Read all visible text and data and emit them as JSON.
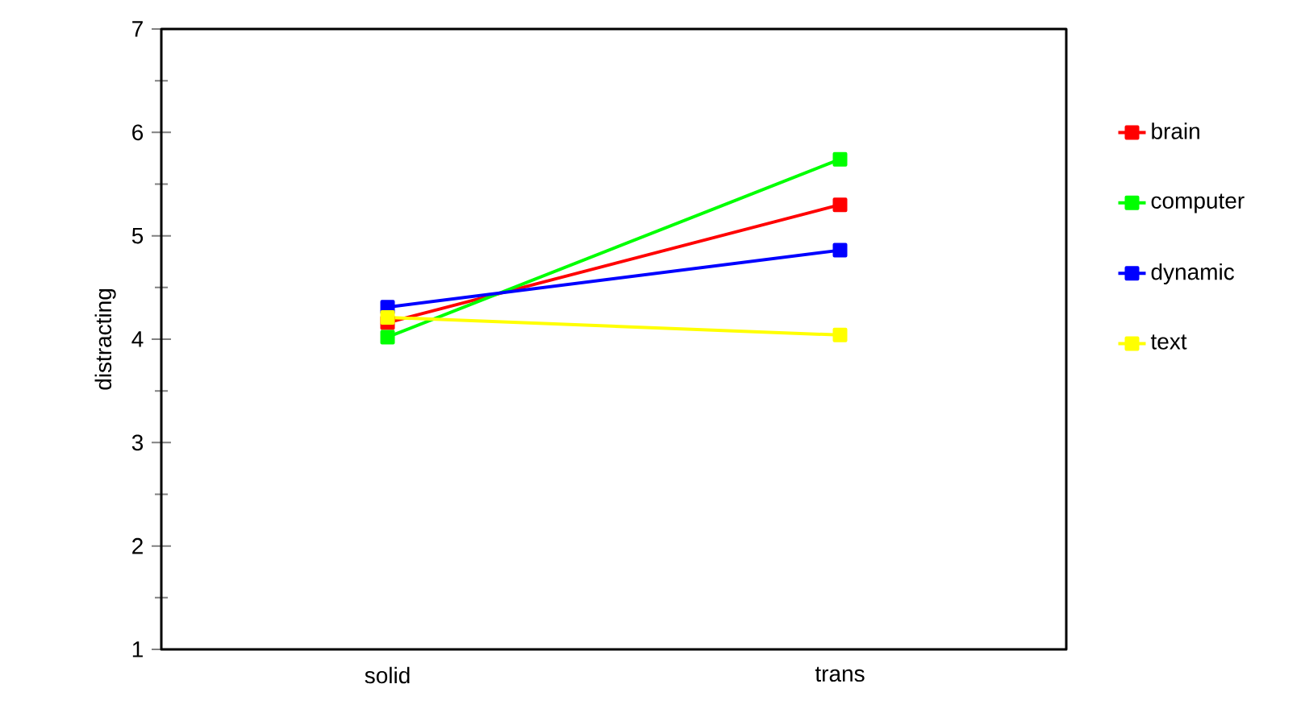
{
  "chart_data": {
    "type": "line",
    "ylabel": "distracting",
    "categories": [
      "solid",
      "trans"
    ],
    "ylim": [
      1,
      7
    ],
    "yticks": [
      1,
      2,
      3,
      4,
      5,
      6,
      7
    ],
    "marker": "square",
    "line_style": "solid",
    "legend": "right",
    "grid": false,
    "series": [
      {
        "name": "brain",
        "color": "#ff0000",
        "values": [
          4.16,
          5.3
        ]
      },
      {
        "name": "computer",
        "color": "#00ff00",
        "values": [
          4.02,
          5.74
        ]
      },
      {
        "name": "dynamic",
        "color": "#0000ff",
        "values": [
          4.31,
          4.86
        ]
      },
      {
        "name": "text",
        "color": "#ffff00",
        "values": [
          4.21,
          4.04
        ]
      }
    ]
  }
}
